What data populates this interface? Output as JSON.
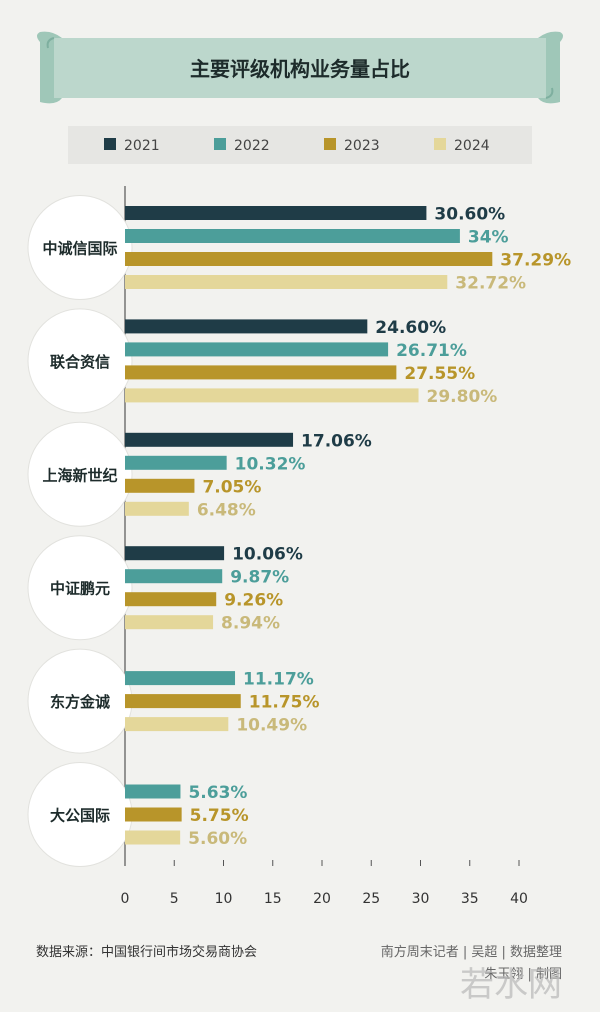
{
  "chart_data": {
    "type": "bar",
    "orientation": "horizontal",
    "title": "主要评级机构业务量占比",
    "categories": [
      "中诚信国际",
      "联合资信",
      "上海新世纪",
      "中证鹏元",
      "东方金诚",
      "大公国际"
    ],
    "series": [
      {
        "name": "2021",
        "values": [
          30.6,
          24.6,
          17.06,
          10.06,
          null,
          null
        ],
        "labels": [
          "30.60%",
          "24.60%",
          "17.06%",
          "10.06%",
          "",
          ""
        ]
      },
      {
        "name": "2022",
        "values": [
          34,
          26.71,
          10.32,
          9.87,
          11.17,
          5.63
        ],
        "labels": [
          "34%",
          "26.71%",
          "10.32%",
          "9.87%",
          "11.17%",
          "5.63%"
        ]
      },
      {
        "name": "2023",
        "values": [
          37.29,
          27.55,
          7.05,
          9.26,
          11.75,
          5.75
        ],
        "labels": [
          "37.29%",
          "27.55%",
          "7.05%",
          "9.26%",
          "11.75%",
          "5.75%"
        ]
      },
      {
        "name": "2024",
        "values": [
          32.72,
          29.8,
          6.48,
          8.94,
          10.49,
          5.6
        ],
        "labels": [
          "32.72%",
          "29.80%",
          "6.48%",
          "8.94%",
          "10.49%",
          "5.60%"
        ]
      }
    ],
    "xlim": [
      0,
      40
    ],
    "xticks": [
      0,
      5,
      10,
      15,
      20,
      25,
      30,
      35,
      40
    ],
    "legend_position": "top",
    "grid": false
  },
  "colors": {
    "2021": "#1f3c47",
    "2022": "#4c9e9a",
    "2023": "#b8952a",
    "2024": "#e4d79a",
    "banner": "#bcd7cc",
    "background": "#f2f2ef"
  },
  "footer": {
    "source": "数据来源：中国银行间市场交易商协会",
    "credit_line1": "南方周末记者 | 吴超 | 数据整理",
    "credit_line2": "朱玉翎 | 制图"
  },
  "watermark": "若水网"
}
